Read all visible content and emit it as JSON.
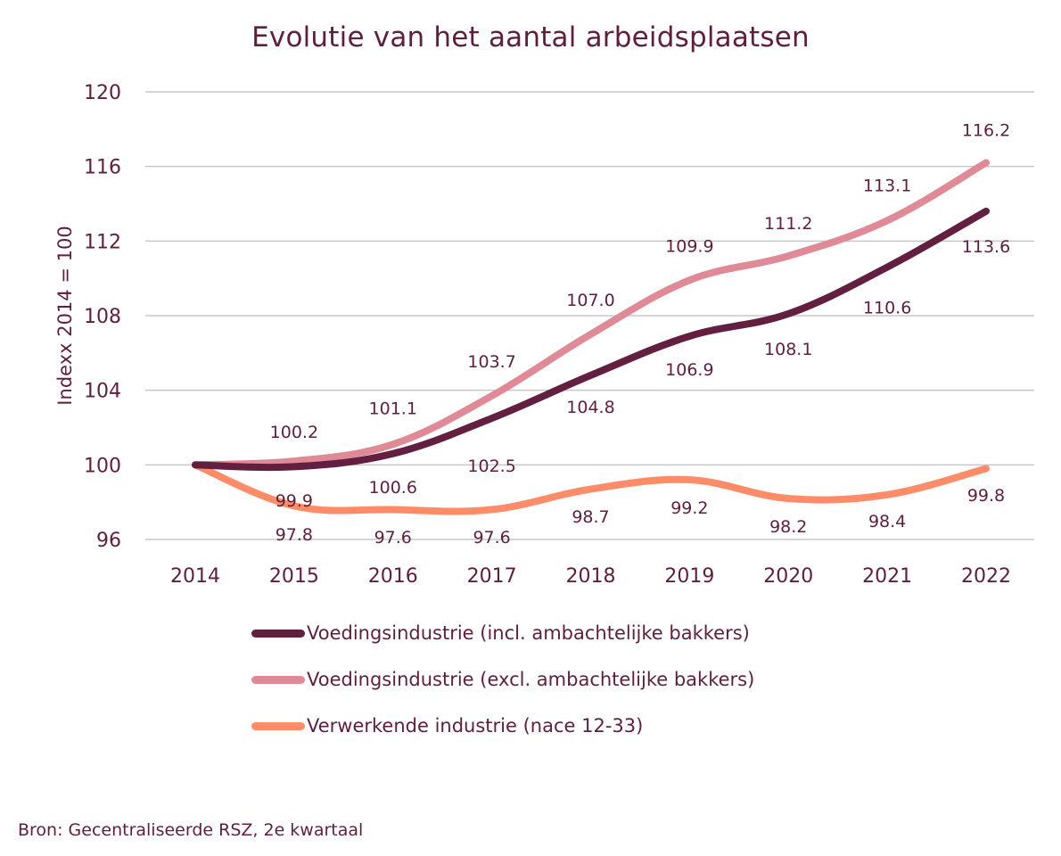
{
  "chart_data": {
    "type": "line",
    "title": "Evolutie van het aantal arbeidsplaatsen",
    "xlabel": "",
    "ylabel": "Indexx 2014 = 100",
    "x": [
      "2014",
      "2015",
      "2016",
      "2017",
      "2018",
      "2019",
      "2020",
      "2021",
      "2022"
    ],
    "ylim": [
      96,
      120
    ],
    "yticks": [
      96,
      100,
      104,
      108,
      112,
      116,
      120
    ],
    "grid": true,
    "legend_position": "bottom",
    "series": [
      {
        "name": "Voedingsindustrie (incl. ambachtelijke bakkers)",
        "color": "#631f40",
        "values": [
          100,
          99.9,
          100.6,
          102.5,
          104.8,
          106.9,
          108.1,
          110.6,
          113.6
        ],
        "labels": [
          "",
          "99.9",
          "100.6",
          "102.5",
          "104.8",
          "106.9",
          "108.1",
          "110.6",
          "113.6"
        ]
      },
      {
        "name": "Voedingsindustrie (excl. ambachtelijke bakkers)",
        "color": "#e08a97",
        "values": [
          100,
          100.2,
          101.1,
          103.7,
          107.0,
          109.9,
          111.2,
          113.1,
          116.2
        ],
        "labels": [
          "",
          "100.2",
          "101.1",
          "103.7",
          "107.0",
          "109.9",
          "111.2",
          "113.1",
          "116.2"
        ]
      },
      {
        "name": "Verwerkende industrie (nace 12-33)",
        "color": "#ff8c69",
        "values": [
          100,
          97.8,
          97.6,
          97.6,
          98.7,
          99.2,
          98.2,
          98.4,
          99.8
        ],
        "labels": [
          "",
          "97.8",
          "97.6",
          "97.6",
          "98.7",
          "99.2",
          "98.2",
          "98.4",
          "99.8"
        ]
      }
    ],
    "source": "Bron: Gecentraliseerde RSZ, 2e kwartaal"
  },
  "colors": {
    "text": "#5e1f3f",
    "grid": "#c8c8c8"
  }
}
